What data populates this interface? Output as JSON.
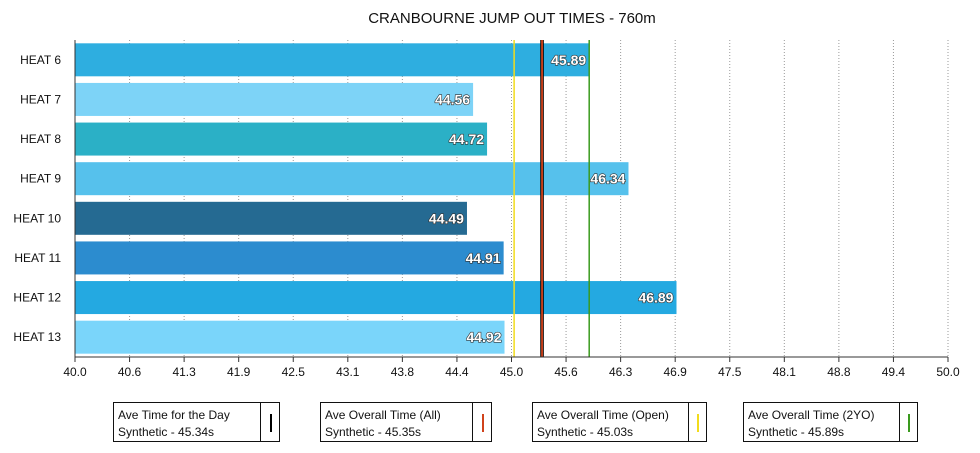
{
  "chart_data": {
    "type": "bar",
    "orientation": "horizontal",
    "title": "CRANBOURNE JUMP OUT TIMES - 760m",
    "categories": [
      "HEAT 6",
      "HEAT 7",
      "HEAT 8",
      "HEAT 9",
      "HEAT 10",
      "HEAT 11",
      "HEAT 12",
      "HEAT 13"
    ],
    "values": [
      45.89,
      44.56,
      44.72,
      46.34,
      44.49,
      44.91,
      46.89,
      44.92
    ],
    "value_labels": [
      "45.89",
      "44.56",
      "44.72",
      "46.34",
      "44.49",
      "44.91",
      "46.89",
      "44.92"
    ],
    "bar_colors": [
      "#2eaee0",
      "#7dd3f7",
      "#2bb0c6",
      "#56c1ec",
      "#256a92",
      "#2c8ccf",
      "#24a9e1",
      "#7ad5fa"
    ],
    "xlim": [
      40.0,
      50.0
    ],
    "xticks": [
      "40.0",
      "40.6",
      "41.3",
      "41.9",
      "42.5",
      "43.1",
      "43.8",
      "44.4",
      "45.0",
      "45.6",
      "46.3",
      "46.9",
      "47.5",
      "48.1",
      "48.8",
      "49.4",
      "50.0"
    ],
    "grid": "vertical dotted",
    "reference_lines": [
      {
        "value": 45.34,
        "color": "#000000"
      },
      {
        "value": 45.35,
        "color": "#d0421b"
      },
      {
        "value": 45.03,
        "color": "#f2dc1c"
      },
      {
        "value": 45.89,
        "color": "#3a9a1e"
      }
    ]
  },
  "legend": [
    {
      "title": "Ave Time for the Day",
      "value": "Synthetic - 45.34s",
      "color": "#000000"
    },
    {
      "title": "Ave Overall Time (All)",
      "value": "Synthetic - 45.35s",
      "color": "#d0421b"
    },
    {
      "title": "Ave Overall Time (Open)",
      "value": "Synthetic - 45.03s",
      "color": "#f2dc1c"
    },
    {
      "title": "Ave Overall Time (2YO)",
      "value": "Synthetic - 45.89s",
      "color": "#3a9a1e"
    }
  ]
}
